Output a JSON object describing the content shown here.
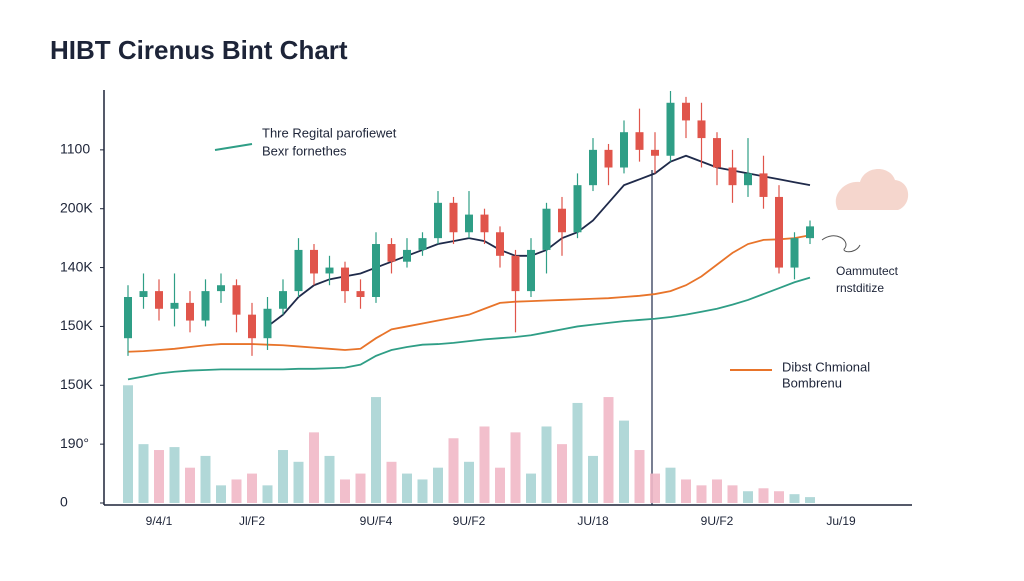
{
  "chart_data": {
    "type": "candlestick",
    "title": "HIBT Cirenus Bint Chart",
    "categories": [
      null,
      null,
      "9/4/1",
      null,
      null,
      null,
      null,
      null,
      "Jl/F2",
      null,
      null,
      null,
      null,
      null,
      null,
      null,
      "9U/F4",
      null,
      null,
      null,
      null,
      null,
      "9U/F2",
      null,
      null,
      null,
      null,
      null,
      null,
      null,
      "JU/18",
      null,
      null,
      null,
      null,
      null,
      null,
      null,
      "9U/F2",
      null,
      null,
      null,
      null,
      null,
      null,
      null,
      "Ju/19"
    ],
    "open": [
      2.8,
      3.5,
      3.6,
      3.3,
      3.4,
      3.1,
      3.6,
      3.7,
      3.2,
      2.8,
      3.3,
      3.6,
      4.3,
      3.9,
      4.0,
      3.6,
      3.5,
      4.4,
      4.1,
      4.3,
      4.5,
      5.1,
      4.6,
      4.9,
      4.6,
      4.2,
      3.6,
      4.3,
      5.0,
      4.6,
      5.4,
      6.0,
      5.7,
      6.3,
      6.0,
      5.9,
      6.8,
      6.5,
      6.2,
      5.7,
      5.4,
      5.6,
      5.2,
      4.0,
      4.5,
      null,
      null
    ],
    "high": [
      3.7,
      3.9,
      3.8,
      3.9,
      3.6,
      3.8,
      3.9,
      3.8,
      3.4,
      3.5,
      3.8,
      4.5,
      4.4,
      4.2,
      4.1,
      3.8,
      4.6,
      4.5,
      4.5,
      4.6,
      5.3,
      5.2,
      5.3,
      5.0,
      4.7,
      4.3,
      4.5,
      5.1,
      5.2,
      5.6,
      6.2,
      6.1,
      6.5,
      6.7,
      6.3,
      7.0,
      6.9,
      6.8,
      6.3,
      6.0,
      6.2,
      5.9,
      5.4,
      4.6,
      4.8,
      null,
      null
    ],
    "low": [
      2.5,
      3.3,
      3.1,
      3.0,
      2.9,
      3.0,
      3.4,
      2.9,
      2.5,
      2.6,
      3.2,
      3.5,
      3.7,
      3.7,
      3.4,
      3.3,
      3.4,
      3.9,
      4.0,
      4.2,
      4.4,
      4.4,
      4.5,
      4.4,
      4.0,
      2.9,
      3.5,
      3.9,
      4.2,
      4.5,
      5.3,
      5.4,
      5.6,
      5.8,
      5.6,
      5.8,
      6.2,
      5.7,
      5.4,
      5.1,
      5.2,
      5.0,
      3.9,
      3.8,
      4.4,
      null,
      null
    ],
    "close": [
      3.5,
      3.6,
      3.3,
      3.4,
      3.1,
      3.6,
      3.7,
      3.2,
      2.8,
      3.3,
      3.6,
      4.3,
      3.9,
      4.0,
      3.6,
      3.5,
      4.4,
      4.1,
      4.3,
      4.5,
      5.1,
      4.6,
      4.9,
      4.6,
      4.2,
      3.6,
      4.3,
      5.0,
      4.6,
      5.4,
      6.0,
      5.7,
      6.3,
      6.0,
      5.9,
      6.8,
      6.5,
      6.2,
      5.7,
      5.4,
      5.6,
      5.2,
      4.0,
      4.5,
      4.7,
      null,
      null
    ],
    "volume": [
      2.0,
      1.0,
      0.9,
      0.95,
      0.6,
      0.8,
      0.3,
      0.4,
      0.5,
      0.3,
      0.9,
      0.7,
      1.2,
      0.8,
      0.4,
      0.5,
      1.8,
      0.7,
      0.5,
      0.4,
      0.6,
      1.1,
      0.7,
      1.3,
      0.6,
      1.2,
      0.5,
      1.3,
      1.0,
      1.7,
      0.8,
      1.8,
      1.4,
      0.9,
      0.5,
      0.6,
      0.4,
      0.3,
      0.4,
      0.3,
      0.2,
      0.25,
      0.2,
      0.15,
      0.1,
      null,
      null
    ],
    "up_color": "#2f9e86",
    "down_color": "#e0554b",
    "volume_up_color": "#a9d4d4",
    "volume_down_color": "#f1b8c7",
    "series": [
      {
        "name": "Thre Regital parofiewet",
        "color": "#1f2a4a",
        "values": [
          null,
          null,
          null,
          null,
          null,
          null,
          null,
          null,
          null,
          3.0,
          3.2,
          3.5,
          3.7,
          3.8,
          3.85,
          3.9,
          4.0,
          4.1,
          4.2,
          4.3,
          4.4,
          4.45,
          4.5,
          4.45,
          4.3,
          4.2,
          4.2,
          4.3,
          4.5,
          4.6,
          4.8,
          5.1,
          5.4,
          5.5,
          5.6,
          5.8,
          5.9,
          5.8,
          5.7,
          5.65,
          5.6,
          5.55,
          5.5,
          5.45,
          5.4,
          null,
          null
        ]
      },
      {
        "name": "Bexr fornethes",
        "color": "#2f9e86",
        "values": [
          2.1,
          2.15,
          2.2,
          2.23,
          2.25,
          2.26,
          2.27,
          2.27,
          2.27,
          2.27,
          2.27,
          2.28,
          2.28,
          2.29,
          2.3,
          2.35,
          2.5,
          2.6,
          2.65,
          2.69,
          2.7,
          2.72,
          2.75,
          2.78,
          2.8,
          2.82,
          2.85,
          2.9,
          2.95,
          3.0,
          3.03,
          3.06,
          3.09,
          3.11,
          3.13,
          3.16,
          3.2,
          3.25,
          3.3,
          3.37,
          3.45,
          3.55,
          3.65,
          3.75,
          3.83,
          null,
          null
        ]
      },
      {
        "name": "Dibst Chmional",
        "color": "#e8742a",
        "values": [
          2.57,
          2.58,
          2.6,
          2.62,
          2.65,
          2.68,
          2.7,
          2.7,
          2.7,
          2.69,
          2.68,
          2.66,
          2.64,
          2.62,
          2.6,
          2.62,
          2.8,
          2.95,
          3.0,
          3.05,
          3.1,
          3.15,
          3.2,
          3.3,
          3.4,
          3.42,
          3.43,
          3.44,
          3.45,
          3.46,
          3.47,
          3.48,
          3.5,
          3.52,
          3.55,
          3.6,
          3.7,
          3.85,
          4.05,
          4.25,
          4.4,
          4.47,
          4.48,
          4.5,
          4.55,
          null,
          null
        ]
      }
    ],
    "legend_extra": "Bombrenu",
    "annotation": [
      "Oammutect",
      "rnstditize"
    ],
    "ylim": [
      0,
      7
    ],
    "yticks": [
      {
        "value": 0,
        "label": "0"
      },
      {
        "value": 1,
        "label": "190°"
      },
      {
        "value": 2,
        "label": "150K"
      },
      {
        "value": 3,
        "label": "150K"
      },
      {
        "value": 4,
        "label": "140K"
      },
      {
        "value": 5,
        "label": "200K"
      },
      {
        "value": 6,
        "label": "1100"
      }
    ]
  }
}
